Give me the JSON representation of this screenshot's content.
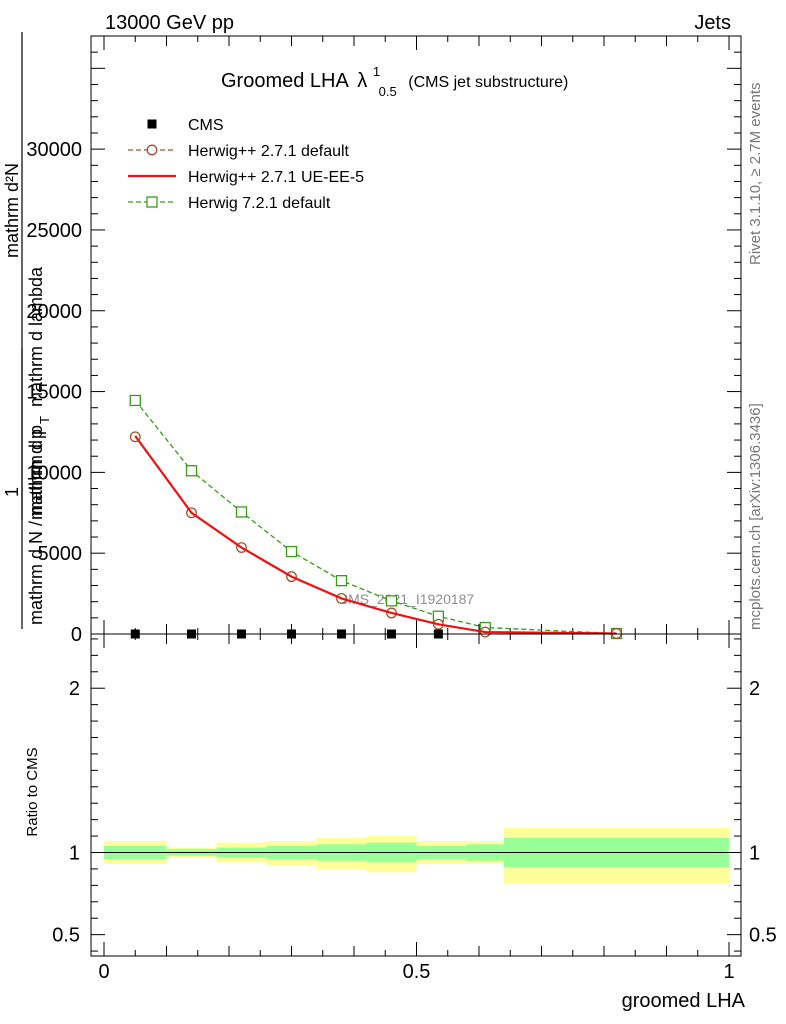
{
  "header": {
    "left": "13000 GeV pp",
    "right": "Jets"
  },
  "side_labels": {
    "rivet": "Rivet 3.1.10, ≥ 2.7M events",
    "mcplots": "mcplots.cern.ch [arXiv:1306.3436]"
  },
  "watermark": "CMS_2021_I1920187",
  "chart_data": [
    {
      "type": "line",
      "title_main": "Groomed LHA",
      "title_symbol": "λ",
      "title_sup": "1",
      "title_sub": "0.5",
      "title_suffix": "(CMS jet substructure)",
      "ylabel": {
        "left_parts": [
          "mathrm d N / mathrm d p",
          "1"
        ],
        "numerator": "mathrm d²N",
        "denominator": "mathrm d p",
        "denominator_sub": "T",
        "denominator_tail": "mathrm d lambda"
      },
      "xlim": [
        0,
        1
      ],
      "ylim": [
        0,
        37000
      ],
      "y_ticks": [
        0,
        5000,
        10000,
        15000,
        20000,
        25000,
        30000
      ],
      "y_tick_labels": [
        "0",
        "5000",
        "10000",
        "15000",
        "20000",
        "25000",
        "30000"
      ],
      "legend_position": "top-left",
      "series": [
        {
          "name": "CMS",
          "marker": "filled-square",
          "color": "#000000",
          "x": [
            0.05,
            0.14,
            0.22,
            0.3,
            0.38,
            0.46,
            0.535
          ],
          "y": [
            0,
            0,
            0,
            0,
            0,
            0,
            0
          ]
        },
        {
          "name": "Herwig++ 2.7.1 default",
          "marker": "open-circle",
          "line": "dashed",
          "color": "#a0522d",
          "x": [
            0.05,
            0.14,
            0.22,
            0.3,
            0.38,
            0.46,
            0.535,
            0.61,
            0.82
          ],
          "y": [
            12200,
            7500,
            5350,
            3550,
            2200,
            1300,
            600,
            120,
            30
          ]
        },
        {
          "name": "Herwig++ 2.7.1 UE-EE-5",
          "marker": "none",
          "line": "solid",
          "color": "#ee1111",
          "x": [
            0.05,
            0.14,
            0.22,
            0.3,
            0.38,
            0.46,
            0.535,
            0.61,
            0.82
          ],
          "y": [
            12250,
            7500,
            5350,
            3550,
            2200,
            1300,
            600,
            120,
            30
          ]
        },
        {
          "name": "Herwig 7.2.1 default",
          "marker": "open-square",
          "line": "dashed",
          "color": "#3a9a1a",
          "x": [
            0.05,
            0.14,
            0.22,
            0.3,
            0.38,
            0.46,
            0.535,
            0.61,
            0.82
          ],
          "y": [
            14450,
            10100,
            7550,
            5100,
            3300,
            2050,
            1100,
            400,
            30
          ]
        }
      ]
    },
    {
      "type": "area",
      "ylabel": "Ratio to CMS",
      "xlabel": "groomed LHA",
      "xlim": [
        0,
        1
      ],
      "ylim": [
        0.37,
        2.33
      ],
      "x_ticks": [
        0,
        0.5,
        1
      ],
      "x_tick_labels": [
        "0",
        "0.5",
        "1"
      ],
      "y_ticks": [
        0.5,
        1,
        2
      ],
      "y_tick_labels": [
        "0.5",
        "1",
        "2"
      ],
      "reference_line": 1,
      "bins": [
        0,
        0.1,
        0.18,
        0.26,
        0.34,
        0.42,
        0.5,
        0.58,
        0.64,
        1.0
      ],
      "inner_band": {
        "color": "#99ff99",
        "low": [
          0.96,
          0.98,
          0.97,
          0.96,
          0.95,
          0.94,
          0.96,
          0.95,
          0.91
        ],
        "high": [
          1.04,
          1.02,
          1.03,
          1.04,
          1.05,
          1.06,
          1.04,
          1.05,
          1.09
        ]
      },
      "outer_band": {
        "color": "#ffff99",
        "low": [
          0.93,
          0.97,
          0.94,
          0.92,
          0.9,
          0.88,
          0.93,
          0.93,
          0.81
        ],
        "high": [
          1.07,
          1.03,
          1.06,
          1.07,
          1.09,
          1.1,
          1.07,
          1.07,
          1.15
        ]
      }
    }
  ]
}
